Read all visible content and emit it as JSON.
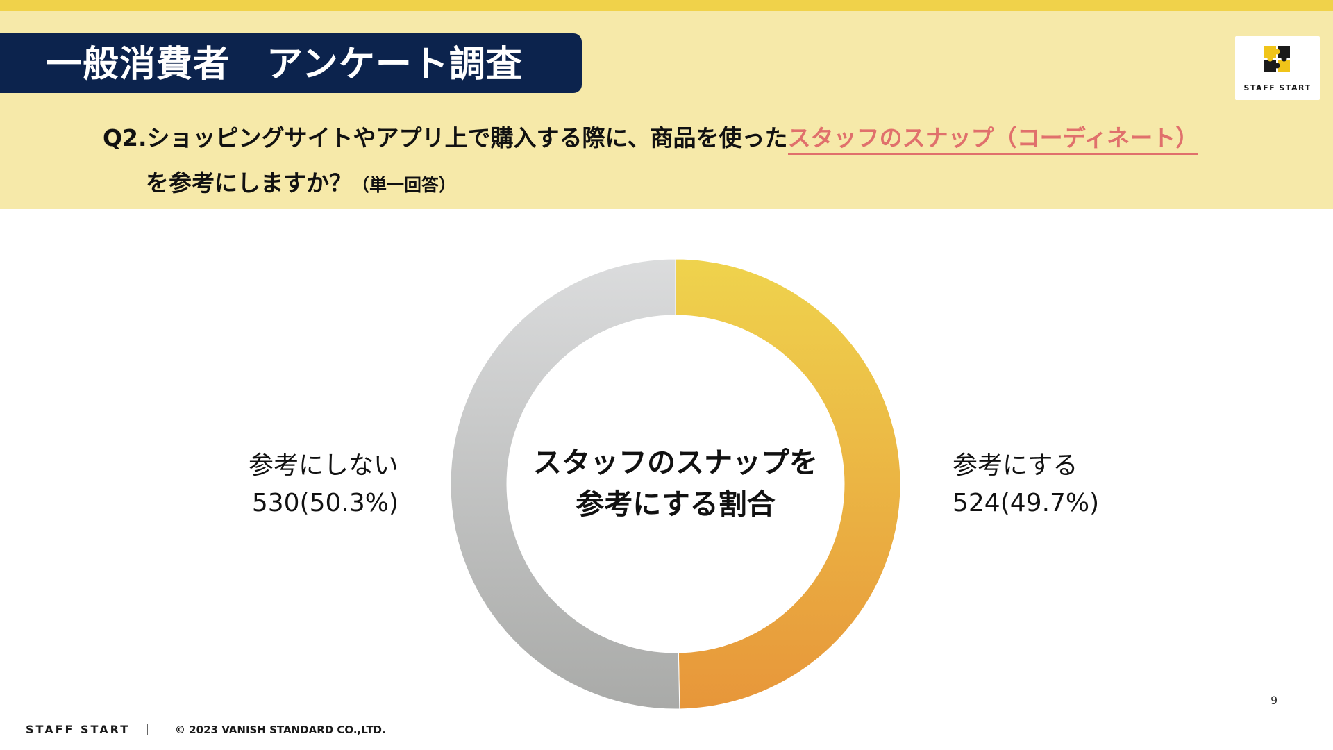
{
  "header": {
    "title": "一般消費者　アンケート調査",
    "question_line1_before": "Q2.ショッピングサイトやアプリ上で購入する際に、商品を使った",
    "question_line1_highlight": "スタッフのスナップ（コーディネート）",
    "question_line2_main": "を参考にしますか？",
    "question_line2_note": "（単一回答）"
  },
  "logo": {
    "text": "STAFF START",
    "icon": "staff-start-logo-icon"
  },
  "chart_data": {
    "type": "pie",
    "donut": true,
    "center_text": [
      "スタッフのスナップを",
      "参考にする割合"
    ],
    "slices": [
      {
        "label": "参考にする",
        "count": 524,
        "percent": 49.7,
        "display": "524(49.7%)",
        "color_start": "#efd34d",
        "color_end": "#e7963a"
      },
      {
        "label": "参考にしない",
        "count": 530,
        "percent": 50.3,
        "display": "530(50.3%)",
        "color_start": "#dbdcdd",
        "color_end": "#a9aaa8"
      }
    ],
    "start_angle": "12 o'clock",
    "direction": "clockwise"
  },
  "colors": {
    "top_stripe": "#f0d24a",
    "header_band": "#f6e9a9",
    "title_box": "#0c234d",
    "highlight": "#e0706c"
  },
  "page": {
    "number": "9"
  },
  "footer": {
    "brand": "STAFF START",
    "copyright": "© 2023 VANISH STANDARD CO.,LTD."
  }
}
